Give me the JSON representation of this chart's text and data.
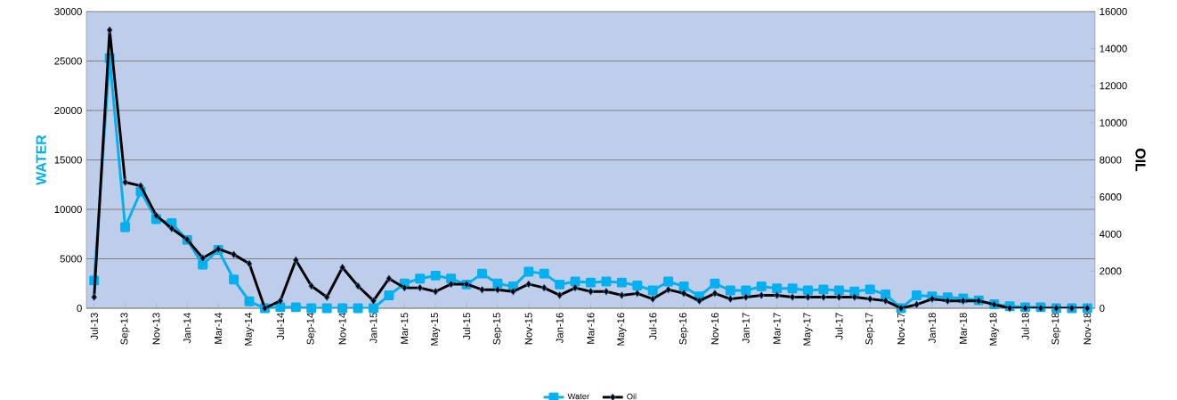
{
  "chart_data": {
    "type": "line",
    "categories": [
      "Jul-13",
      null,
      "Sep-13",
      null,
      "Nov-13",
      null,
      "Jan-14",
      null,
      "Mar-14",
      null,
      "May-14",
      null,
      "Jul-14",
      null,
      "Sep-14",
      null,
      "Nov-14",
      null,
      "Jan-15",
      null,
      "Mar-15",
      null,
      "May-15",
      null,
      "Jul-15",
      null,
      "Sep-15",
      null,
      "Nov-15",
      null,
      "Jan-16",
      null,
      "Mar-16",
      null,
      "May-16",
      null,
      "Jul-16",
      null,
      "Sep-16",
      null,
      "Nov-16",
      null,
      "Jan-17",
      null,
      "Mar-17",
      null,
      "May-17",
      null,
      "Jul-17",
      null,
      "Sep-17",
      null,
      "Nov-17",
      null,
      "Jan-18",
      null,
      "Mar-18",
      null,
      "May-18",
      null,
      "Jul-18",
      null,
      "Sep-18",
      null,
      "Nov-18"
    ],
    "series": [
      {
        "name": "Water",
        "color": "#00b0f0",
        "marker": "square",
        "axis": "y",
        "values": [
          2800,
          25300,
          8200,
          11800,
          9000,
          8600,
          6900,
          4400,
          5900,
          2900,
          700,
          0,
          100,
          100,
          0,
          0,
          0,
          0,
          0,
          1300,
          2500,
          3000,
          3300,
          3000,
          2400,
          3500,
          2500,
          2200,
          3700,
          3500,
          2400,
          2700,
          2600,
          2700,
          2600,
          2300,
          1800,
          2700,
          2200,
          1200,
          2500,
          1800,
          1800,
          2200,
          2000,
          2000,
          1800,
          1900,
          1800,
          1700,
          1900,
          1400,
          0,
          1300,
          1200,
          1100,
          1000,
          800,
          400,
          200,
          100,
          100,
          0,
          0,
          0
        ]
      },
      {
        "name": "Oil",
        "color": "#000000",
        "marker": "diamond",
        "axis": "y2",
        "values": [
          600,
          15000,
          6800,
          6600,
          5000,
          4300,
          3700,
          2700,
          3200,
          2900,
          2400,
          0,
          400,
          2600,
          1200,
          600,
          2200,
          1200,
          400,
          1600,
          1100,
          1100,
          900,
          1300,
          1300,
          1000,
          1000,
          900,
          1300,
          1100,
          700,
          1100,
          900,
          900,
          700,
          800,
          500,
          1000,
          800,
          400,
          800,
          500,
          600,
          700,
          700,
          600,
          600,
          600,
          600,
          600,
          500,
          400,
          0,
          200,
          500,
          400,
          400,
          400,
          200,
          0,
          0,
          0,
          0,
          0,
          0
        ]
      }
    ],
    "ylabel": "WATER",
    "y2label": "OIL",
    "ylim": [
      0,
      30000
    ],
    "yticks": [
      0,
      5000,
      10000,
      15000,
      20000,
      25000,
      30000
    ],
    "y2lim": [
      0,
      16000
    ],
    "y2ticks": [
      0,
      2000,
      4000,
      6000,
      8000,
      10000,
      12000,
      14000,
      16000
    ],
    "grid": "y",
    "legend": "bottom"
  }
}
